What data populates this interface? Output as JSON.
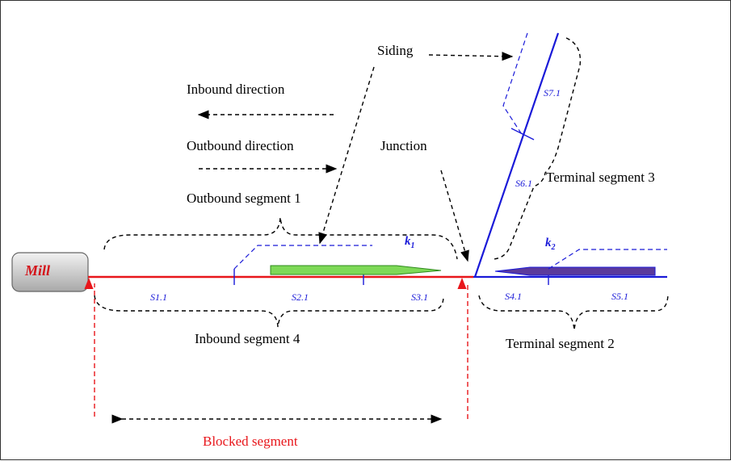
{
  "mill": {
    "label": "Mill"
  },
  "labels": {
    "siding": "Siding",
    "inbound_direction": "Inbound direction",
    "outbound_direction": "Outbound direction",
    "junction": "Junction",
    "outbound_segment_1": "Outbound segment 1",
    "inbound_segment_4": "Inbound segment 4",
    "terminal_segment_3": "Terminal segment 3",
    "terminal_segment_2": "Terminal segment 2",
    "blocked_segment": "Blocked segment"
  },
  "sections": {
    "s11": "S1.1",
    "s21": "S2.1",
    "s31": "S3.1",
    "s41": "S4.1",
    "s51": "S5.1",
    "s61": "S6.1",
    "s71": "S7.1"
  },
  "k_labels": {
    "k1": "k",
    "k1_sub": "1",
    "k2": "k",
    "k2_sub": "2"
  },
  "colors": {
    "mainline": "#e8161b",
    "terminal_track": "#1a1ad8",
    "train_outbound": "#7ed957",
    "train_inbound": "#5b3a9c",
    "blocked": "#e8161b"
  }
}
